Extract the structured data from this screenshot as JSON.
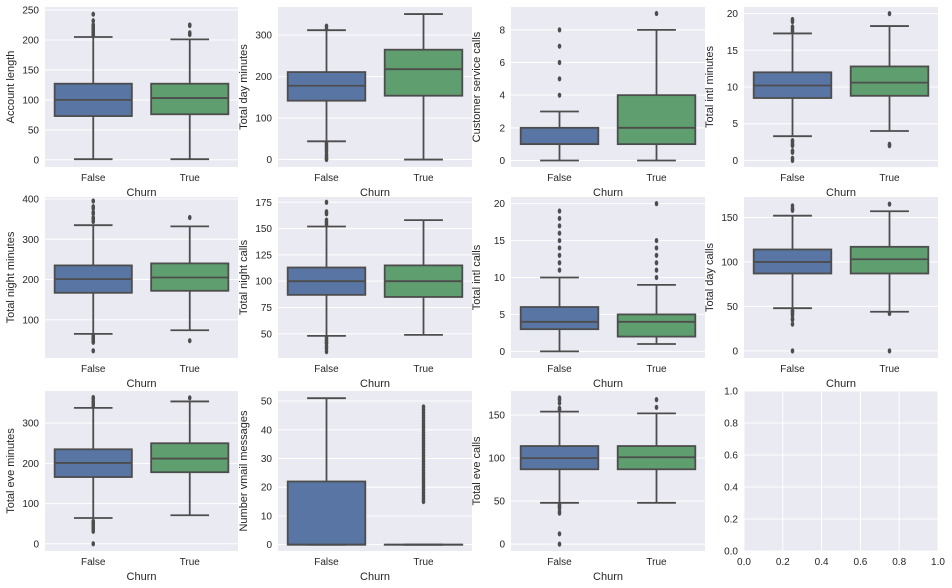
{
  "chart_data": [
    {
      "type": "box",
      "ylabel": "Account length",
      "xlabel": "Churn",
      "categories": [
        "False",
        "True"
      ],
      "ylim": [
        -12,
        255
      ],
      "yticks": [
        0,
        50,
        100,
        150,
        200,
        250
      ],
      "boxes": [
        {
          "name": "False",
          "whislo": 1,
          "q1": 73,
          "med": 100,
          "q3": 127,
          "whishi": 205,
          "fliers": [
            208,
            210,
            212,
            215,
            217,
            221,
            224,
            225,
            232,
            243
          ]
        },
        {
          "name": "True",
          "whislo": 1,
          "q1": 76,
          "med": 103,
          "q3": 127,
          "whishi": 201,
          "fliers": [
            209,
            212,
            224,
            225
          ]
        }
      ]
    },
    {
      "type": "box",
      "ylabel": "Total day minutes",
      "xlabel": "Churn",
      "categories": [
        "False",
        "True"
      ],
      "ylim": [
        -18,
        368
      ],
      "yticks": [
        0,
        100,
        200,
        300
      ],
      "boxes": [
        {
          "name": "False",
          "whislo": 44,
          "q1": 142,
          "med": 178,
          "q3": 211,
          "whishi": 312,
          "fliers": [
            0,
            2,
            7,
            12,
            19,
            25,
            30,
            35,
            40,
            315,
            322
          ]
        },
        {
          "name": "True",
          "whislo": 0,
          "q1": 154,
          "med": 218,
          "q3": 265,
          "whishi": 351,
          "fliers": []
        }
      ]
    },
    {
      "type": "box",
      "ylabel": "Customer service calls",
      "xlabel": "Churn",
      "categories": [
        "False",
        "True"
      ],
      "ylim": [
        -0.4,
        9.4
      ],
      "yticks": [
        0,
        2,
        4,
        6,
        8
      ],
      "boxes": [
        {
          "name": "False",
          "whislo": 0,
          "q1": 1,
          "med": 1,
          "q3": 2,
          "whishi": 3,
          "fliers": [
            4,
            5,
            6,
            7,
            8
          ]
        },
        {
          "name": "True",
          "whislo": 0,
          "q1": 1,
          "med": 2,
          "q3": 4,
          "whishi": 8,
          "fliers": [
            9
          ]
        }
      ]
    },
    {
      "type": "box",
      "ylabel": "Total intl minutes",
      "xlabel": "Churn",
      "categories": [
        "False",
        "True"
      ],
      "ylim": [
        -0.9,
        20.9
      ],
      "yticks": [
        0,
        5,
        10,
        15,
        20
      ],
      "boxes": [
        {
          "name": "False",
          "whislo": 3.3,
          "q1": 8.5,
          "med": 10.2,
          "q3": 12.0,
          "whishi": 17.3,
          "fliers": [
            0,
            0.3,
            1.1,
            1.3,
            2.0,
            2.2,
            2.5,
            2.7,
            17.6,
            17.9,
            18.2,
            18.9,
            19.2
          ]
        },
        {
          "name": "True",
          "whislo": 4.0,
          "q1": 8.8,
          "med": 10.6,
          "q3": 12.8,
          "whishi": 18.3,
          "fliers": [
            2.0,
            2.2,
            20.0
          ]
        }
      ]
    },
    {
      "type": "box",
      "ylabel": "Total night minutes",
      "xlabel": "Churn",
      "categories": [
        "False",
        "True"
      ],
      "ylim": [
        5,
        405
      ],
      "yticks": [
        100,
        200,
        300,
        400
      ],
      "boxes": [
        {
          "name": "False",
          "whislo": 65,
          "q1": 167,
          "med": 201,
          "q3": 235,
          "whishi": 335,
          "fliers": [
            23,
            44,
            47,
            50,
            54,
            57,
            60,
            344,
            350,
            354,
            364,
            367,
            377,
            381,
            395
          ]
        },
        {
          "name": "True",
          "whislo": 74,
          "q1": 172,
          "med": 205,
          "q3": 240,
          "whishi": 332,
          "fliers": [
            48,
            354
          ]
        }
      ]
    },
    {
      "type": "box",
      "ylabel": "Total night calls",
      "xlabel": "Churn",
      "categories": [
        "False",
        "True"
      ],
      "ylim": [
        27,
        180
      ],
      "yticks": [
        50,
        75,
        100,
        125,
        150,
        175
      ],
      "boxes": [
        {
          "name": "False",
          "whislo": 48,
          "q1": 87,
          "med": 100,
          "q3": 113,
          "whishi": 152,
          "fliers": [
            33,
            36,
            38,
            41,
            42,
            44,
            46,
            154,
            156,
            158,
            164,
            166,
            175
          ]
        },
        {
          "name": "True",
          "whislo": 49,
          "q1": 85,
          "med": 100,
          "q3": 115,
          "whishi": 158,
          "fliers": []
        }
      ]
    },
    {
      "type": "box",
      "ylabel": "Total intl calls",
      "xlabel": "Churn",
      "categories": [
        "False",
        "True"
      ],
      "ylim": [
        -0.9,
        20.9
      ],
      "yticks": [
        0,
        5,
        10,
        15,
        20
      ],
      "boxes": [
        {
          "name": "False",
          "whislo": 0,
          "q1": 3,
          "med": 4,
          "q3": 6,
          "whishi": 10,
          "fliers": [
            11,
            12,
            13,
            14,
            15,
            16,
            17,
            18,
            19
          ]
        },
        {
          "name": "True",
          "whislo": 1,
          "q1": 2,
          "med": 4,
          "q3": 5,
          "whishi": 9,
          "fliers": [
            10,
            11,
            12,
            13,
            14,
            15,
            20
          ]
        }
      ]
    },
    {
      "type": "box",
      "ylabel": "Total day calls",
      "xlabel": "Churn",
      "categories": [
        "False",
        "True"
      ],
      "ylim": [
        -8,
        173
      ],
      "yticks": [
        0,
        50,
        100,
        150
      ],
      "boxes": [
        {
          "name": "False",
          "whislo": 48,
          "q1": 87,
          "med": 100,
          "q3": 114,
          "whishi": 152,
          "fliers": [
            0,
            30,
            35,
            36,
            40,
            42,
            44,
            45,
            158,
            160,
            163
          ]
        },
        {
          "name": "True",
          "whislo": 44,
          "q1": 87,
          "med": 103,
          "q3": 117,
          "whishi": 157,
          "fliers": [
            0,
            42,
            165
          ]
        }
      ]
    },
    {
      "type": "box",
      "ylabel": "Total eve minutes",
      "xlabel": "Churn",
      "categories": [
        "False",
        "True"
      ],
      "ylim": [
        -18,
        380
      ],
      "yticks": [
        0,
        100,
        200,
        300
      ],
      "boxes": [
        {
          "name": "False",
          "whislo": 64,
          "q1": 166,
          "med": 201,
          "q3": 235,
          "whishi": 338,
          "fliers": [
            0,
            31,
            37,
            42,
            48,
            52,
            56,
            342,
            348,
            354,
            361,
            364
          ]
        },
        {
          "name": "True",
          "whislo": 71,
          "q1": 178,
          "med": 212,
          "q3": 250,
          "whishi": 354,
          "fliers": [
            363
          ]
        }
      ]
    },
    {
      "type": "box",
      "ylabel": "Number vmail messages",
      "xlabel": "Churn",
      "categories": [
        "False",
        "True"
      ],
      "ylim": [
        -2.2,
        53.5
      ],
      "yticks": [
        0,
        10,
        20,
        30,
        40,
        50
      ],
      "boxes": [
        {
          "name": "False",
          "whislo": 0,
          "q1": 0,
          "med": 0,
          "q3": 22,
          "whishi": 51,
          "fliers": []
        },
        {
          "name": "True",
          "whislo": 0,
          "q1": 0,
          "med": 0,
          "q3": 0,
          "whishi": 0,
          "fliers": [
            15,
            16,
            17,
            18,
            19,
            20,
            21,
            22,
            23,
            24,
            25,
            26,
            27,
            28,
            29,
            30,
            31,
            32,
            33,
            34,
            35,
            36,
            37,
            38,
            39,
            40,
            41,
            42,
            43,
            44,
            45,
            46,
            47,
            48
          ]
        }
      ]
    },
    {
      "type": "box",
      "ylabel": "Total eve calls",
      "xlabel": "Churn",
      "categories": [
        "False",
        "True"
      ],
      "ylim": [
        -8,
        178
      ],
      "yticks": [
        0,
        50,
        100,
        150
      ],
      "boxes": [
        {
          "name": "False",
          "whislo": 48,
          "q1": 87,
          "med": 100,
          "q3": 114,
          "whishi": 154,
          "fliers": [
            0,
            12,
            36,
            38,
            42,
            44,
            46,
            156,
            158,
            164,
            168,
            170
          ]
        },
        {
          "name": "True",
          "whislo": 48,
          "q1": 87,
          "med": 101,
          "q3": 114,
          "whishi": 152,
          "fliers": [
            159,
            168
          ]
        }
      ]
    },
    {
      "type": "empty",
      "ylabel": "",
      "xlabel": "",
      "xlim": [
        0,
        1
      ],
      "ylim": [
        0,
        1
      ],
      "xticks": [
        "0.0",
        "0.2",
        "0.4",
        "0.6",
        "0.8",
        "1.0"
      ],
      "yticks": [
        "0.0",
        "0.2",
        "0.4",
        "0.6",
        "0.8",
        "1.0"
      ]
    }
  ],
  "colors": {
    "background": "#EAEAF2",
    "grid": "#FFFFFF",
    "line": "#4D4D4D",
    "false_fill": "#5875A4",
    "true_fill": "#5F9E6E"
  }
}
